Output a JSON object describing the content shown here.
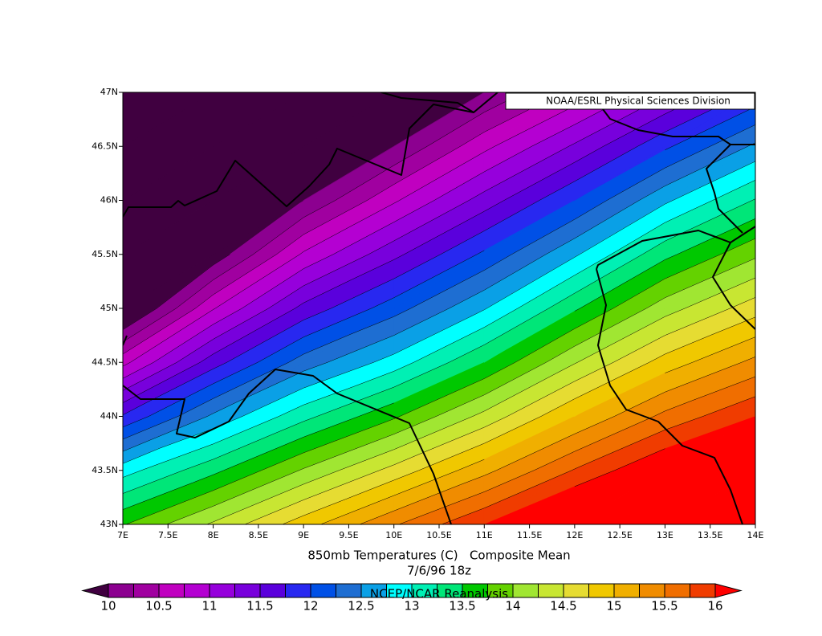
{
  "chart_data": {
    "type": "contour",
    "credit": "NOAA/ESRL Physical Sciences Division",
    "title": "850mb Temperatures (C)   Composite Mean",
    "subtitle": "7/6/96 18z",
    "source": "NCEP/NCAR Reanalysis",
    "x": [
      7,
      8,
      9,
      10,
      11,
      12,
      13,
      14
    ],
    "y": [
      43,
      43.5,
      44,
      44.5,
      45,
      45.5,
      46,
      46.5,
      47
    ],
    "z": [
      [
        13.73,
        14.29,
        14.89,
        15.47,
        16.0,
        16.54,
        17.0,
        17.36
      ],
      [
        12.89,
        13.43,
        14.03,
        14.59,
        15.17,
        15.77,
        16.29,
        16.68
      ],
      [
        11.78,
        12.55,
        13.17,
        13.71,
        14.33,
        15.0,
        15.57,
        16.0
      ],
      [
        10.67,
        11.64,
        12.37,
        12.86,
        13.5,
        14.23,
        14.86,
        15.32
      ],
      [
        9.56,
        10.73,
        11.58,
        12.14,
        12.73,
        13.46,
        14.14,
        14.64
      ],
      [
        8.44,
        9.82,
        10.79,
        11.43,
        12.05,
        12.71,
        13.43,
        13.95
      ],
      [
        7.33,
        8.91,
        10.0,
        10.71,
        11.36,
        12.0,
        12.7,
        13.27
      ],
      [
        6.22,
        8.0,
        9.21,
        10.0,
        10.68,
        11.29,
        11.95,
        12.55
      ],
      [
        5.11,
        7.09,
        8.42,
        9.29,
        10.0,
        10.57,
        11.2,
        11.8
      ]
    ],
    "xlim": [
      7,
      14
    ],
    "ylim": [
      43,
      47
    ],
    "xticks": [
      {
        "value": 7,
        "label": "7E"
      },
      {
        "value": 7.5,
        "label": "7.5E"
      },
      {
        "value": 8,
        "label": "8E"
      },
      {
        "value": 8.5,
        "label": "8.5E"
      },
      {
        "value": 9,
        "label": "9E"
      },
      {
        "value": 9.5,
        "label": "9.5E"
      },
      {
        "value": 10,
        "label": "10E"
      },
      {
        "value": 10.5,
        "label": "10.5E"
      },
      {
        "value": 11,
        "label": "11E"
      },
      {
        "value": 11.5,
        "label": "11.5E"
      },
      {
        "value": 12,
        "label": "12E"
      },
      {
        "value": 12.5,
        "label": "12.5E"
      },
      {
        "value": 13,
        "label": "13E"
      },
      {
        "value": 13.5,
        "label": "13.5E"
      },
      {
        "value": 14,
        "label": "14E"
      }
    ],
    "yticks": [
      {
        "value": 43,
        "label": "43N"
      },
      {
        "value": 43.5,
        "label": "43.5N"
      },
      {
        "value": 44,
        "label": "44N"
      },
      {
        "value": 44.5,
        "label": "44.5N"
      },
      {
        "value": 45,
        "label": "45N"
      },
      {
        "value": 45.5,
        "label": "45.5N"
      },
      {
        "value": 46,
        "label": "46N"
      },
      {
        "value": 46.5,
        "label": "46.5N"
      },
      {
        "value": 47,
        "label": "47N"
      }
    ],
    "levels": [
      10,
      10.25,
      10.5,
      10.75,
      11,
      11.25,
      11.5,
      11.75,
      12,
      12.25,
      12.5,
      12.75,
      13,
      13.25,
      13.5,
      13.75,
      14,
      14.25,
      14.5,
      14.75,
      15,
      15.25,
      15.5,
      15.75,
      16
    ],
    "colors": [
      "#400040",
      "#8c0090",
      "#a000a0",
      "#c000c0",
      "#b400d2",
      "#9600dc",
      "#7800dc",
      "#5a00dc",
      "#2828f0",
      "#0050e6",
      "#1e6ed2",
      "#0aa0e6",
      "#00ffff",
      "#00f0b4",
      "#00e678",
      "#00c800",
      "#64d200",
      "#a0e632",
      "#c8e632",
      "#e6dc32",
      "#f0c800",
      "#f0af00",
      "#f08c00",
      "#f06e00",
      "#f03c00",
      "#ff0000"
    ],
    "colorbar_ticks": [
      10,
      10.5,
      11,
      11.5,
      12,
      12.5,
      13,
      13.5,
      14,
      14.5,
      15,
      15.5,
      16
    ]
  }
}
